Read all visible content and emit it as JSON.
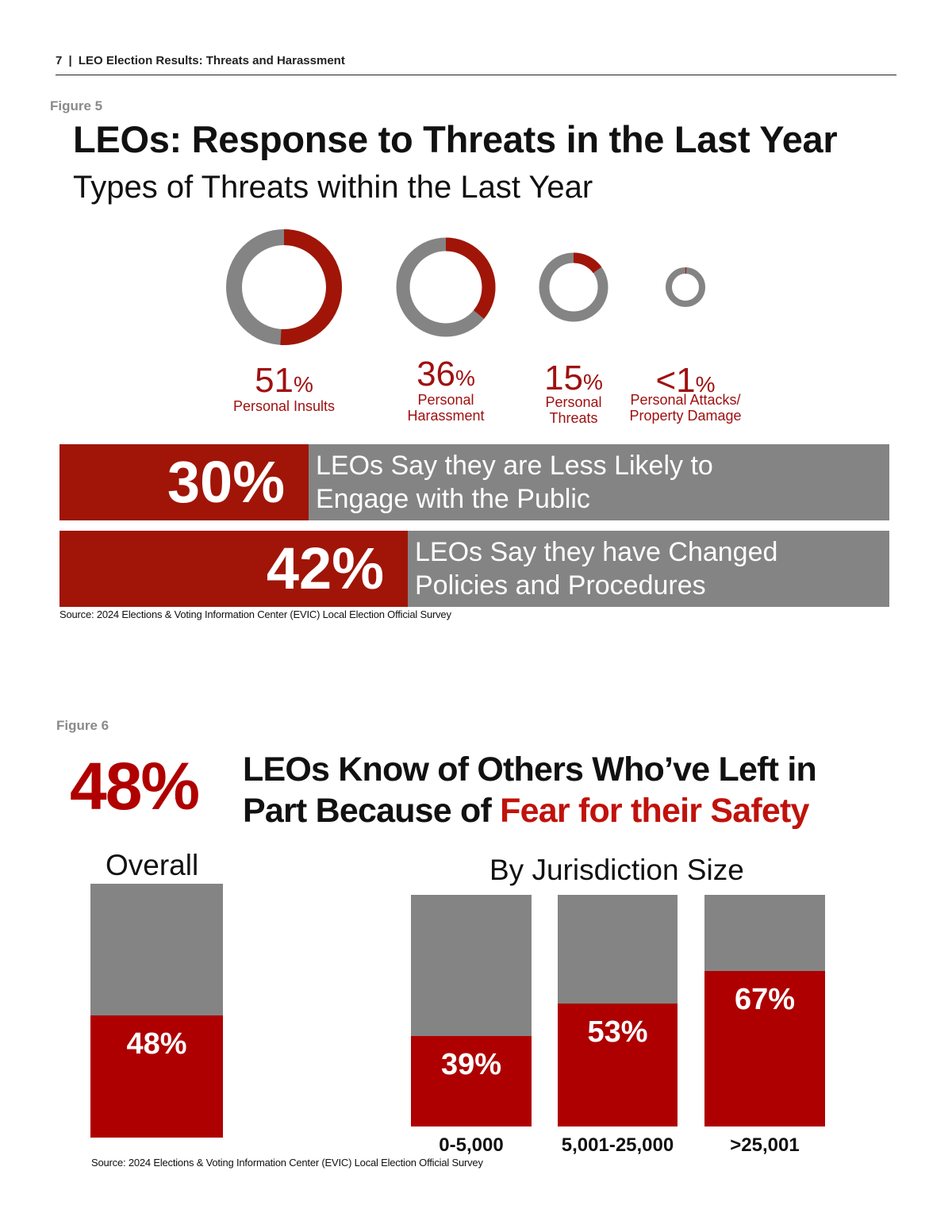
{
  "header": {
    "page_number": "7",
    "separator": "|",
    "title": "LEO Election Results: Threats and Harassment"
  },
  "figure5": {
    "label": "Figure 5",
    "title": "LEOs: Response to Threats in the Last Year",
    "subtitle": "Types of Threats within the Last Year",
    "donuts": [
      {
        "value": "51",
        "sign": "%",
        "caption_lines": [
          "Personal Insults"
        ],
        "fraction": 0.51
      },
      {
        "value": "36",
        "sign": "%",
        "caption_lines": [
          "Personal",
          "Harassment"
        ],
        "fraction": 0.36
      },
      {
        "value": "15",
        "sign": "%",
        "caption_lines": [
          "Personal",
          "Threats"
        ],
        "fraction": 0.15
      },
      {
        "value": "<1",
        "sign": "%",
        "caption_lines": [
          "Personal Attacks/",
          "Property Damage"
        ],
        "fraction": 0.008
      }
    ],
    "bars": [
      {
        "value": "30%",
        "text_lines": [
          "LEOs Say they are Less Likely to",
          "Engage with the Public"
        ],
        "fraction": 0.3
      },
      {
        "value": "42%",
        "text_lines": [
          "LEOs Say they have Changed",
          "Policies and Procedures"
        ],
        "fraction": 0.42
      }
    ],
    "source": "Source: 2024 Elections & Voting Information Center (EVIC) Local Election Official Survey"
  },
  "figure6": {
    "label": "Figure 6",
    "big_percent": "48%",
    "title_line1": "LEOs Know of Others Who’ve Left in",
    "title_line2_prefix": "Part Because of ",
    "title_line2_highlight": "Fear for their Safety",
    "overall_heading": "Overall",
    "jurisdiction_heading": "By Jurisdiction Size",
    "source": "Source: 2024 Elections & Voting Information Center (EVIC) Local Election Official Survey"
  },
  "chart_data": [
    {
      "type": "pie",
      "variant": "donut",
      "categories": [
        "Personal Insults",
        "Personal Harassment",
        "Personal Threats",
        "Personal Attacks/Property Damage"
      ],
      "values": [
        51,
        36,
        15,
        1
      ],
      "value_labels": [
        "51%",
        "36%",
        "15%",
        "<1%"
      ],
      "title": "Types of Threats within the Last Year"
    },
    {
      "type": "bar",
      "orientation": "horizontal",
      "categories": [
        "LEOs Say they are Less Likely to Engage with the Public",
        "LEOs Say they have Changed Policies and Procedures"
      ],
      "values": [
        30,
        42
      ],
      "value_labels": [
        "30%",
        "42%"
      ],
      "ylim": [
        0,
        100
      ]
    },
    {
      "type": "bar",
      "stacked_to": 100,
      "title": "Overall",
      "categories": [
        ""
      ],
      "values": [
        48
      ],
      "value_labels": [
        "48%"
      ],
      "ylim": [
        0,
        100
      ]
    },
    {
      "type": "bar",
      "stacked_to": 100,
      "title": "By Jurisdiction Size",
      "categories": [
        "0-5,000",
        "5,001-25,000",
        ">25,001"
      ],
      "values": [
        39,
        53,
        67
      ],
      "value_labels": [
        "39%",
        "53%",
        "67%"
      ],
      "ylim": [
        0,
        100
      ]
    }
  ],
  "colors": {
    "accent_red": "#a01507",
    "bar_red": "#ae0000",
    "gray": "#848484",
    "label_gray": "#8a8a8a"
  }
}
